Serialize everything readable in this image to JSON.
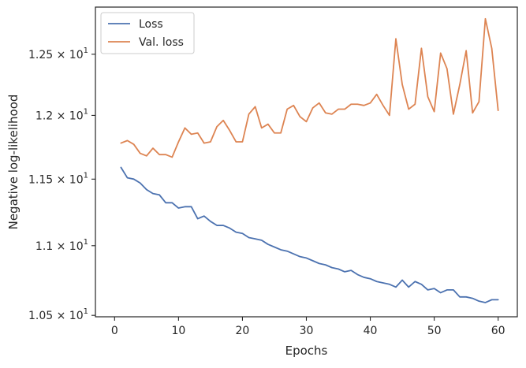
{
  "chart_data": {
    "type": "line",
    "title": "",
    "xlabel": "Epochs",
    "ylabel": "Negative log-likelihood",
    "xlim": [
      -3,
      63
    ],
    "ylim": [
      1.049,
      1.29
    ],
    "y_scale": "log",
    "grid": false,
    "legend_position": "top-left",
    "x_ticks": [
      0,
      10,
      20,
      30,
      40,
      50,
      60
    ],
    "x_tick_labels": [
      "0",
      "10",
      "20",
      "30",
      "40",
      "50",
      "60"
    ],
    "y_ticks": [
      1.05,
      1.1,
      1.15,
      1.2,
      1.25
    ],
    "y_tick_labels": [
      {
        "mantissa": "1.05",
        "sep": "×",
        "base": "10",
        "exp": "1"
      },
      {
        "mantissa": "1.1",
        "sep": "×",
        "base": "10",
        "exp": "1"
      },
      {
        "mantissa": "1.15",
        "sep": "×",
        "base": "10",
        "exp": "1"
      },
      {
        "mantissa": "1.2",
        "sep": "×",
        "base": "10",
        "exp": "1"
      },
      {
        "mantissa": "1.25",
        "sep": "×",
        "base": "10",
        "exp": "1"
      }
    ],
    "x": [
      1,
      2,
      3,
      4,
      5,
      6,
      7,
      8,
      9,
      10,
      11,
      12,
      13,
      14,
      15,
      16,
      17,
      18,
      19,
      20,
      21,
      22,
      23,
      24,
      25,
      26,
      27,
      28,
      29,
      30,
      31,
      32,
      33,
      34,
      35,
      36,
      37,
      38,
      39,
      40,
      41,
      42,
      43,
      44,
      45,
      46,
      47,
      48,
      49,
      50,
      51,
      52,
      53,
      54,
      55,
      56,
      57,
      58,
      59,
      60
    ],
    "series": [
      {
        "name": "Loss",
        "color": "#4c72b0",
        "values": [
          1.159,
          1.151,
          1.15,
          1.147,
          1.142,
          1.139,
          1.138,
          1.132,
          1.132,
          1.128,
          1.129,
          1.129,
          1.12,
          1.122,
          1.118,
          1.115,
          1.115,
          1.113,
          1.11,
          1.109,
          1.106,
          1.105,
          1.104,
          1.101,
          1.099,
          1.097,
          1.096,
          1.094,
          1.092,
          1.091,
          1.089,
          1.087,
          1.086,
          1.084,
          1.083,
          1.081,
          1.082,
          1.079,
          1.077,
          1.076,
          1.074,
          1.073,
          1.072,
          1.07,
          1.075,
          1.07,
          1.074,
          1.072,
          1.068,
          1.069,
          1.066,
          1.068,
          1.068,
          1.063,
          1.063,
          1.062,
          1.06,
          1.059,
          1.061,
          1.061
        ]
      },
      {
        "name": "Val. loss",
        "color": "#dd8452",
        "values": [
          1.178,
          1.18,
          1.177,
          1.17,
          1.168,
          1.174,
          1.169,
          1.169,
          1.167,
          1.179,
          1.19,
          1.185,
          1.186,
          1.178,
          1.179,
          1.191,
          1.196,
          1.188,
          1.179,
          1.179,
          1.201,
          1.207,
          1.19,
          1.193,
          1.186,
          1.186,
          1.205,
          1.208,
          1.199,
          1.195,
          1.206,
          1.21,
          1.202,
          1.201,
          1.205,
          1.205,
          1.209,
          1.209,
          1.208,
          1.21,
          1.217,
          1.208,
          1.2,
          1.263,
          1.225,
          1.205,
          1.209,
          1.255,
          1.215,
          1.203,
          1.251,
          1.238,
          1.201,
          1.225,
          1.253,
          1.202,
          1.211,
          1.28,
          1.255,
          1.204
        ]
      }
    ]
  }
}
